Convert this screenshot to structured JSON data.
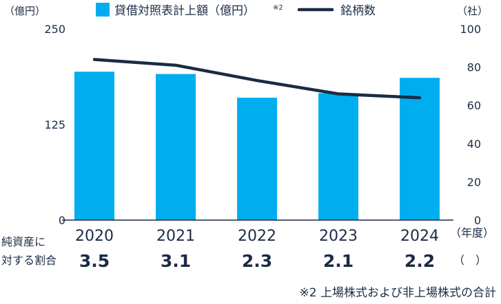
{
  "chart_data": {
    "type": "bar",
    "categories": [
      "2020",
      "2021",
      "2022",
      "2023",
      "2024"
    ],
    "series": [
      {
        "name": "貸借対照表計上額（億円）",
        "type": "bar",
        "axis": "left",
        "values": [
          194,
          191,
          160,
          166,
          186
        ]
      },
      {
        "name": "銘柄数",
        "type": "line",
        "axis": "right",
        "values": [
          84,
          81,
          73,
          66,
          64
        ]
      }
    ],
    "legend": {
      "bar_label": "貸借対照表計上額（億円）",
      "bar_note": "※2",
      "line_label": "銘柄数",
      "position": "top"
    },
    "left_axis": {
      "unit": "（億円）",
      "ticks": [
        0,
        125,
        250
      ],
      "range": [
        0,
        250
      ]
    },
    "right_axis": {
      "unit": "（社）",
      "ticks": [
        0,
        20,
        40,
        60,
        80,
        100
      ],
      "range": [
        0,
        100
      ]
    },
    "x_axis": {
      "unit": "（年度）"
    },
    "ratio_row": {
      "label_line1": "純資産に",
      "label_line2": "対する割合",
      "values": [
        "3.5",
        "3.1",
        "2.3",
        "2.1",
        "2.2"
      ],
      "unit": "（　）"
    },
    "footnote": "※2 上場株式および非上場株式の合計",
    "colors": {
      "bar": "#00aeef",
      "line": "#1b2b45",
      "text": "#1b2b45"
    }
  }
}
